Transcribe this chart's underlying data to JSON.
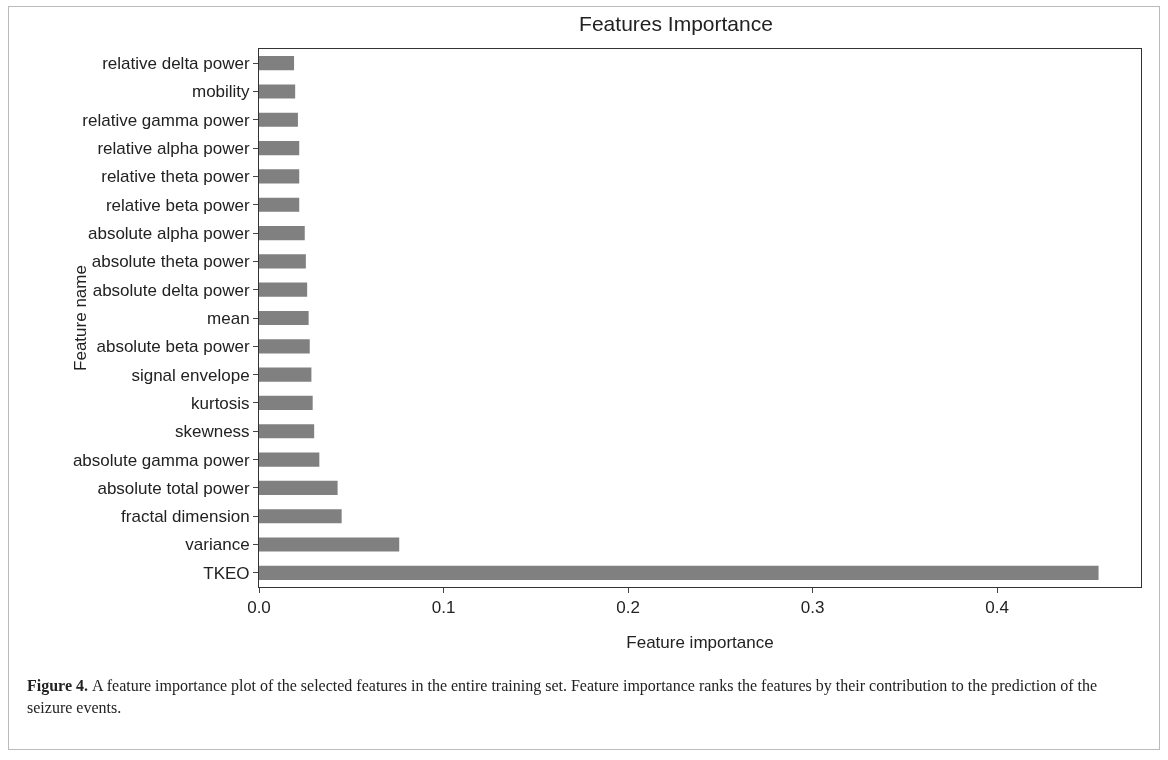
{
  "chart_data": {
    "type": "bar",
    "orientation": "horizontal",
    "title": "Features Importance",
    "xlabel": "Feature importance",
    "ylabel": "Feature name",
    "categories": [
      "relative delta power",
      "mobility",
      "relative gamma power",
      "relative alpha power",
      "relative theta power",
      "relative beta power",
      "absolute alpha power",
      "absolute theta power",
      "absolute delta power",
      "mean",
      "absolute beta power",
      "signal envelope",
      "kurtosis",
      "skewness",
      "absolute gamma power",
      "absolute total power",
      "fractal dimension",
      "variance",
      "TKEO"
    ],
    "values": [
      0.019,
      0.0196,
      0.0211,
      0.0218,
      0.0218,
      0.0218,
      0.0248,
      0.0254,
      0.0261,
      0.0269,
      0.0275,
      0.0284,
      0.0291,
      0.0299,
      0.0327,
      0.0426,
      0.0448,
      0.076,
      0.455
    ],
    "color": "#808080",
    "xlim": [
      0,
      0.478
    ],
    "xticks": [
      {
        "value": 0,
        "label": "0.0"
      },
      0.1,
      0.2,
      0.3,
      0.4
    ],
    "grid": false,
    "legend": false,
    "annotations": [
      "Figure 4.",
      "A feature importance plot of the selected features in the entire training set. Feature importance ranks the features by their contribution to the prediction of the seizure events."
    ]
  }
}
